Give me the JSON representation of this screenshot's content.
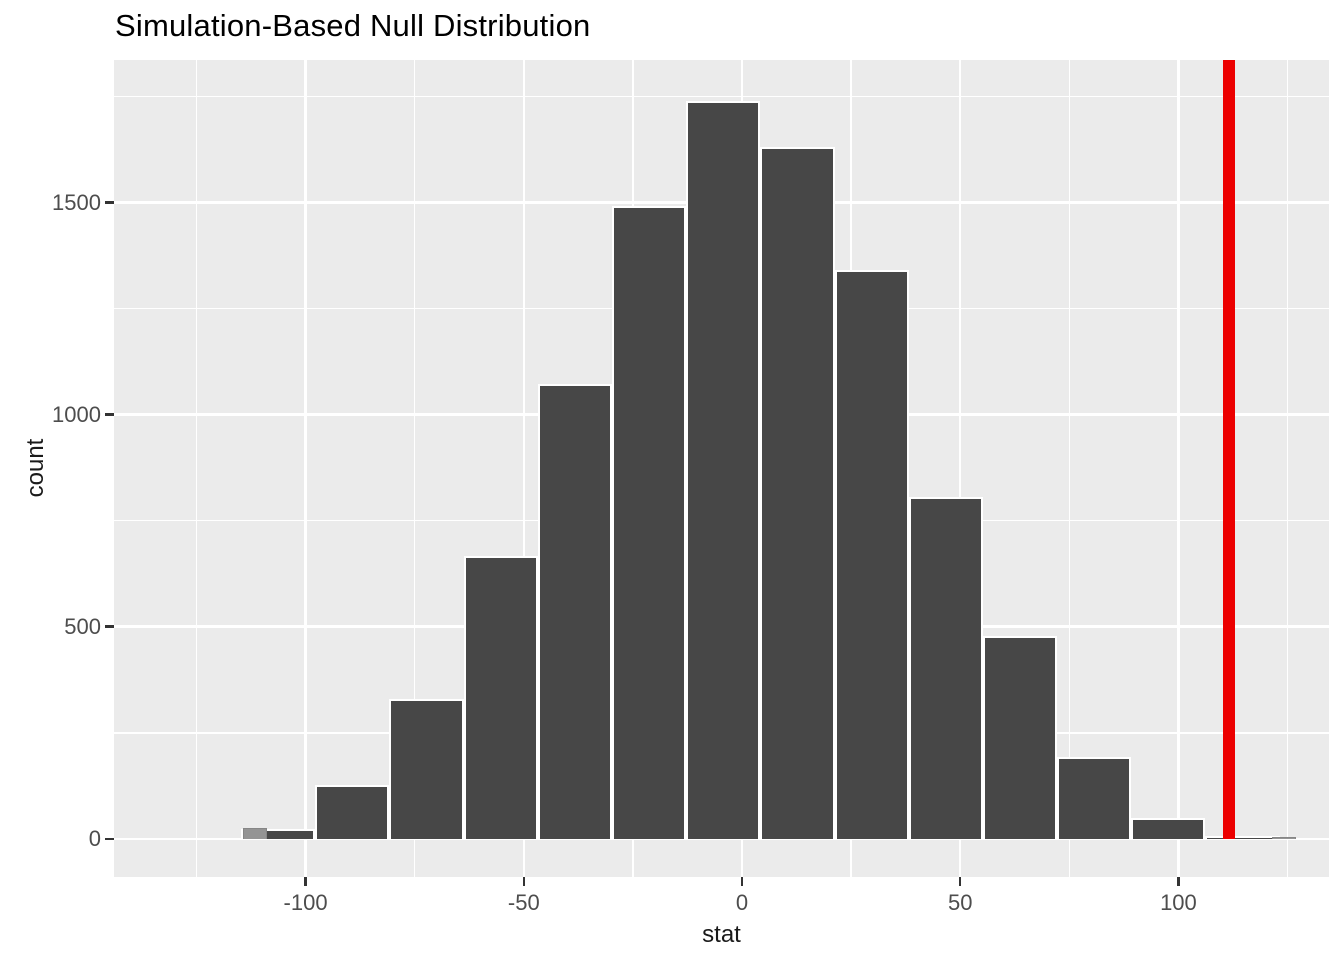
{
  "title": "Simulation-Based Null Distribution",
  "chart_data": {
    "type": "bar",
    "subtype": "histogram",
    "title": "Simulation-Based Null Distribution",
    "xlabel": "stat",
    "ylabel": "count",
    "x_ticks": [
      -100,
      -50,
      0,
      50,
      100
    ],
    "x_minor_gridlines": [
      -125,
      -75,
      -25,
      25,
      75,
      125
    ],
    "y_ticks": [
      0,
      500,
      1000,
      1500
    ],
    "y_minor_gridlines": [
      250,
      750,
      1250,
      1750
    ],
    "xlim": [
      -143.9,
      134.5
    ],
    "ylim": [
      -90,
      1836
    ],
    "grid": "on",
    "legend": "none",
    "bins": {
      "start": -131.8,
      "width": 17.0,
      "counts": [
        2,
        23,
        127,
        330,
        667,
        1072,
        1492,
        1740,
        1630,
        1340,
        805,
        477,
        194,
        49,
        7
      ]
    },
    "overlay_bars": [
      {
        "x0": -114.3,
        "x1": -108.9,
        "count": 26
      },
      {
        "x0": 121.4,
        "x1": 126.9,
        "count": 5
      }
    ],
    "observed_stat_line": {
      "x": 111.5
    },
    "colors": {
      "panel_bg": "#EBEBEB",
      "grid": "#FFFFFF",
      "bar_fill": "#474747",
      "bar_border": "#FFFFFF",
      "overlay_fill": "#949494",
      "overlay_border": "#868686",
      "observed_line": "#EC0000",
      "tick_label": "#4D4D4D",
      "axis_title": "#1A1A1A",
      "tick_mark": "#333333"
    }
  }
}
